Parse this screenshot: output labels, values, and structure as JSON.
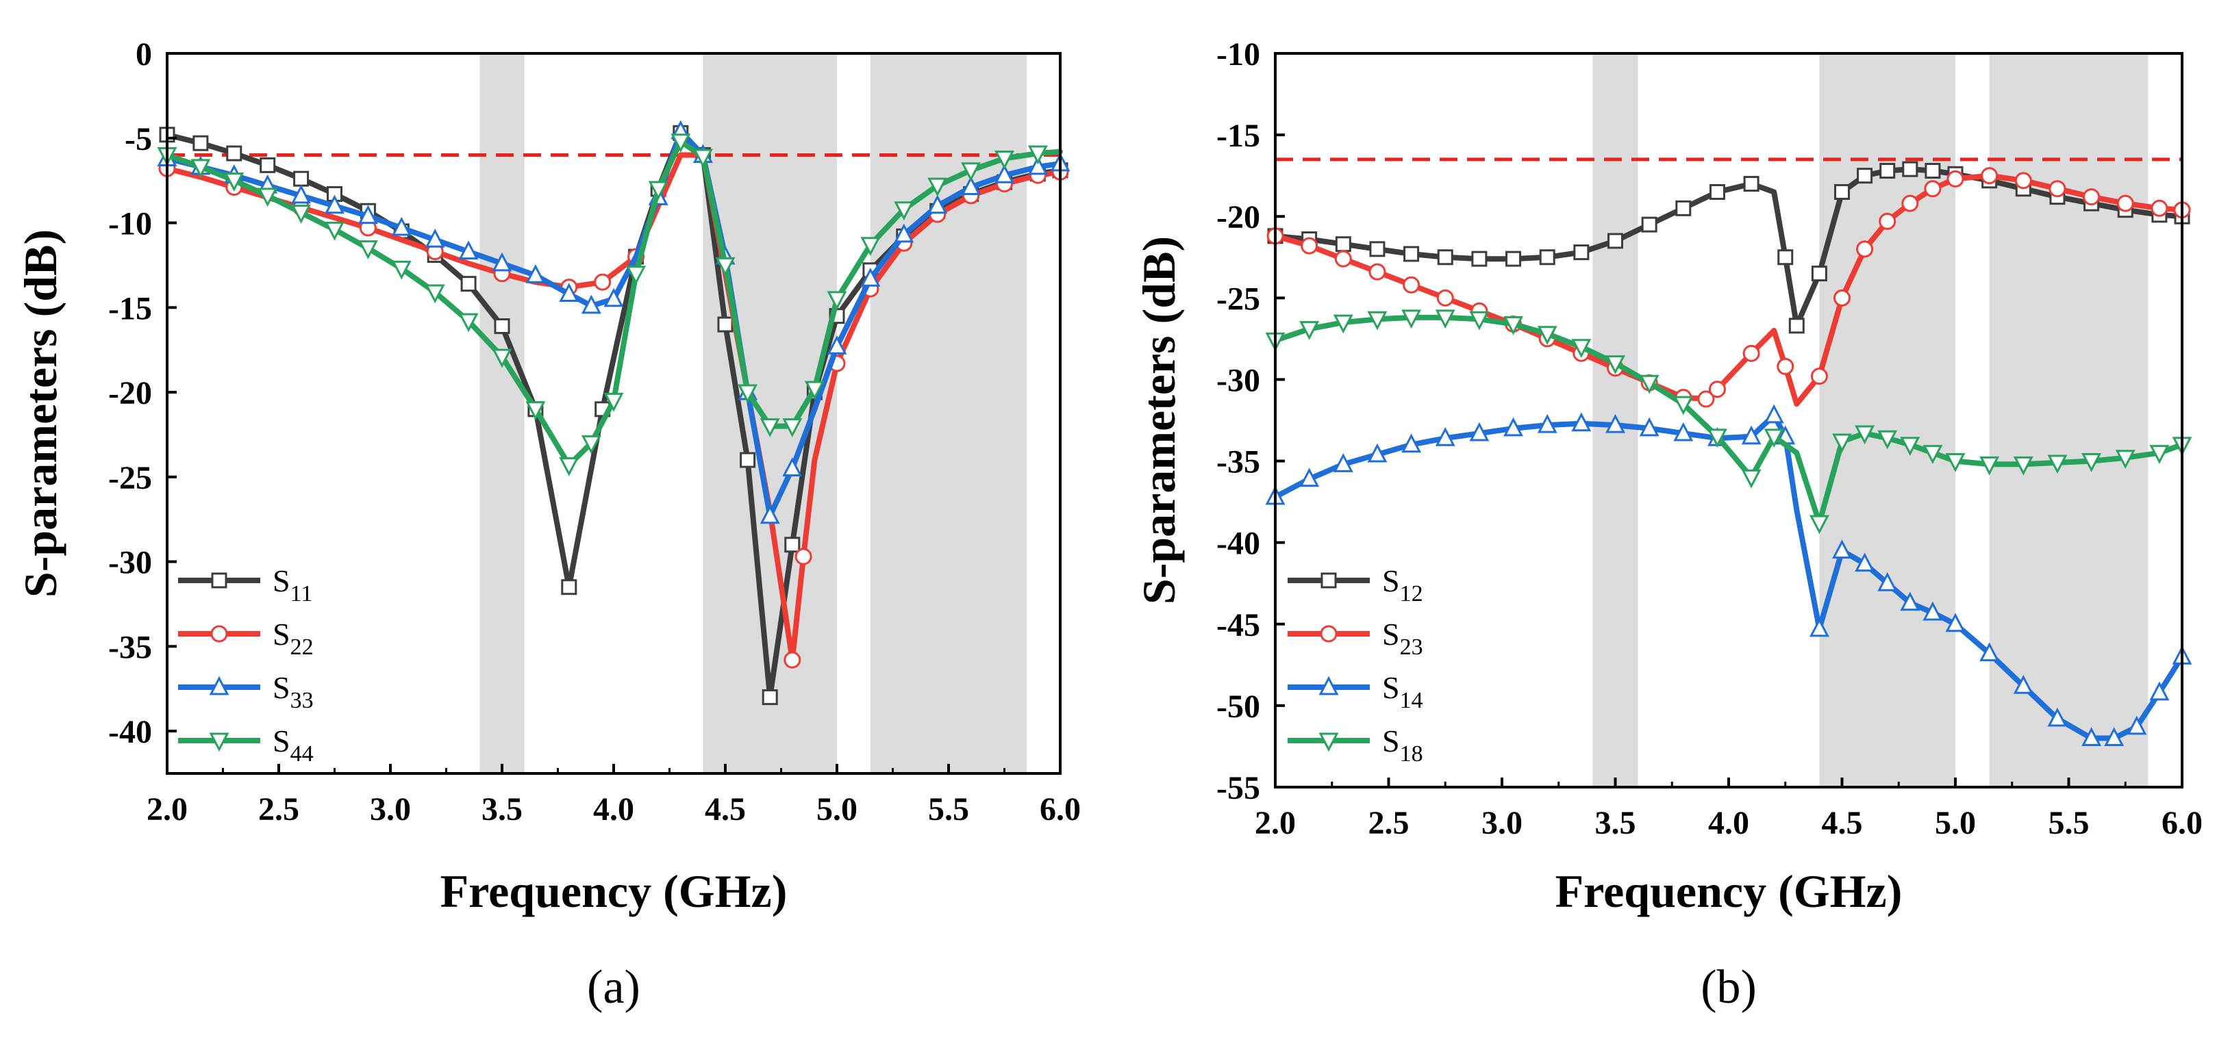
{
  "figure": {
    "colors": {
      "band": "#dcdcdc",
      "threshold": "#e8231e",
      "s_black": "#3d3d3d",
      "s_red": "#ee3b33",
      "s_blue": "#1f6fdb",
      "s_green": "#27a35b"
    }
  },
  "chart_data": [
    {
      "panel": "a",
      "panel_label": "(a)",
      "type": "line",
      "xlabel": "Frequency (GHz)",
      "ylabel": "S-parameters (dB)",
      "xlim": [
        2.0,
        6.0
      ],
      "ylim": [
        -42.5,
        0
      ],
      "xticks": [
        2.0,
        2.5,
        3.0,
        3.5,
        4.0,
        4.5,
        5.0,
        5.5,
        6.0
      ],
      "xtick_labels": [
        "2.0",
        "2.5",
        "3.0",
        "3.5",
        "4.0",
        "4.5",
        "5.0",
        "5.5",
        "6.0"
      ],
      "yticks": [
        0,
        -5,
        -10,
        -15,
        -20,
        -25,
        -30,
        -35,
        -40
      ],
      "ytick_labels": [
        "0",
        "-5",
        "-10",
        "-15",
        "-20",
        "-25",
        "-30",
        "-35",
        "-40"
      ],
      "threshold": -6,
      "bands": [
        [
          3.4,
          3.6
        ],
        [
          4.4,
          5.0
        ],
        [
          5.15,
          5.85
        ]
      ],
      "legend_position": "bottom-left",
      "series": [
        {
          "name": "S11",
          "label_main": "S",
          "label_sub": "11",
          "color": "#3d3d3d",
          "marker": "square",
          "x": [
            2.0,
            2.15,
            2.3,
            2.45,
            2.6,
            2.75,
            2.9,
            3.05,
            3.2,
            3.35,
            3.5,
            3.65,
            3.8,
            3.95,
            4.1,
            4.2,
            4.3,
            4.4,
            4.5,
            4.6,
            4.7,
            4.8,
            4.9,
            5.0,
            5.15,
            5.3,
            5.45,
            5.6,
            5.75,
            5.9,
            6.0
          ],
          "y": [
            -4.8,
            -5.3,
            -5.9,
            -6.6,
            -7.4,
            -8.3,
            -9.3,
            -10.5,
            -11.9,
            -13.6,
            -16.1,
            -21.0,
            -31.5,
            -21.0,
            -12.0,
            -8.0,
            -4.7,
            -6.0,
            -16.0,
            -24.0,
            -38.0,
            -29.0,
            -20.0,
            -15.5,
            -12.8,
            -10.8,
            -9.3,
            -8.3,
            -7.6,
            -7.1,
            -6.9
          ],
          "markers": [
            0,
            1,
            2,
            3,
            4,
            5,
            6,
            7,
            8,
            9,
            10,
            11,
            12,
            13,
            14,
            15,
            16,
            17,
            18,
            19,
            20,
            21,
            22,
            23,
            24,
            25,
            26,
            27,
            28,
            29,
            30
          ]
        },
        {
          "name": "S22",
          "label_main": "S",
          "label_sub": "22",
          "color": "#ee3b33",
          "marker": "circle",
          "x": [
            2.0,
            2.15,
            2.3,
            2.45,
            2.6,
            2.75,
            2.9,
            3.05,
            3.2,
            3.35,
            3.5,
            3.65,
            3.8,
            3.95,
            4.1,
            4.2,
            4.3,
            4.4,
            4.5,
            4.6,
            4.7,
            4.8,
            4.85,
            4.9,
            5.0,
            5.15,
            5.3,
            5.45,
            5.6,
            5.75,
            5.9,
            6.0
          ],
          "y": [
            -6.8,
            -7.3,
            -7.9,
            -8.5,
            -9.1,
            -9.7,
            -10.3,
            -11.0,
            -11.7,
            -12.4,
            -13.0,
            -13.5,
            -13.8,
            -13.5,
            -12.0,
            -9.0,
            -6.0,
            -6.0,
            -13.0,
            -20.0,
            -27.0,
            -35.8,
            -29.7,
            -24.0,
            -18.3,
            -13.9,
            -11.2,
            -9.5,
            -8.4,
            -7.7,
            -7.2,
            -7.0
          ],
          "markers": [
            0,
            2,
            4,
            6,
            8,
            10,
            12,
            13,
            14,
            21,
            22,
            24,
            25,
            26,
            27,
            28,
            29,
            30,
            31
          ]
        },
        {
          "name": "S33",
          "label_main": "S",
          "label_sub": "33",
          "color": "#1f6fdb",
          "marker": "triangle-up",
          "x": [
            2.0,
            2.15,
            2.3,
            2.45,
            2.6,
            2.75,
            2.9,
            3.05,
            3.2,
            3.35,
            3.5,
            3.65,
            3.8,
            3.9,
            4.0,
            4.1,
            4.2,
            4.3,
            4.4,
            4.5,
            4.6,
            4.7,
            4.8,
            4.9,
            5.0,
            5.15,
            5.3,
            5.45,
            5.6,
            5.75,
            5.9,
            6.0
          ],
          "y": [
            -6.2,
            -6.7,
            -7.2,
            -7.8,
            -8.4,
            -9.0,
            -9.6,
            -10.3,
            -11.0,
            -11.7,
            -12.4,
            -13.1,
            -14.2,
            -14.9,
            -14.5,
            -12.0,
            -8.5,
            -4.6,
            -6.0,
            -12.0,
            -20.0,
            -27.3,
            -24.5,
            -21.0,
            -17.3,
            -13.3,
            -10.7,
            -9.0,
            -7.9,
            -7.2,
            -6.7,
            -6.5
          ],
          "markers": [
            0,
            1,
            2,
            3,
            4,
            5,
            6,
            7,
            8,
            9,
            10,
            11,
            12,
            13,
            14,
            16,
            17,
            18,
            19,
            20,
            21,
            22,
            24,
            25,
            26,
            27,
            28,
            29,
            30,
            31
          ]
        },
        {
          "name": "S44",
          "label_main": "S",
          "label_sub": "44",
          "color": "#27a35b",
          "marker": "triangle-down",
          "x": [
            2.0,
            2.15,
            2.3,
            2.45,
            2.6,
            2.75,
            2.9,
            3.05,
            3.2,
            3.35,
            3.5,
            3.65,
            3.8,
            3.9,
            4.0,
            4.1,
            4.2,
            4.3,
            4.4,
            4.5,
            4.6,
            4.7,
            4.8,
            4.9,
            5.0,
            5.15,
            5.3,
            5.45,
            5.6,
            5.75,
            5.9,
            6.0
          ],
          "y": [
            -6.0,
            -6.7,
            -7.5,
            -8.4,
            -9.4,
            -10.4,
            -11.5,
            -12.7,
            -14.1,
            -15.8,
            -17.9,
            -21.0,
            -24.3,
            -23.0,
            -20.5,
            -13.0,
            -8.0,
            -5.2,
            -6.1,
            -12.5,
            -20.0,
            -22.0,
            -22.0,
            -19.8,
            -14.5,
            -11.3,
            -9.2,
            -7.8,
            -6.9,
            -6.2,
            -5.9,
            -5.8
          ],
          "markers": [
            0,
            1,
            2,
            3,
            4,
            5,
            6,
            7,
            8,
            9,
            10,
            11,
            12,
            13,
            14,
            15,
            16,
            17,
            18,
            19,
            20,
            21,
            22,
            23,
            24,
            25,
            26,
            27,
            28,
            29,
            30
          ]
        }
      ]
    },
    {
      "panel": "b",
      "panel_label": "(b)",
      "type": "line",
      "xlabel": "Frequency (GHz)",
      "ylabel": "S-parameters (dB)",
      "xlim": [
        2.0,
        6.0
      ],
      "ylim": [
        -55,
        -10
      ],
      "xticks": [
        2.0,
        2.5,
        3.0,
        3.5,
        4.0,
        4.5,
        5.0,
        5.5,
        6.0
      ],
      "xtick_labels": [
        "2.0",
        "2.5",
        "3.0",
        "3.5",
        "4.0",
        "4.5",
        "5.0",
        "5.5",
        "6.0"
      ],
      "yticks": [
        -10,
        -15,
        -20,
        -25,
        -30,
        -35,
        -40,
        -45,
        -50,
        -55
      ],
      "ytick_labels": [
        "-10",
        "-15",
        "-20",
        "-25",
        "-30",
        "-35",
        "-40",
        "-45",
        "-50",
        "-55"
      ],
      "threshold": -16.5,
      "bands": [
        [
          3.4,
          3.6
        ],
        [
          4.4,
          5.0
        ],
        [
          5.15,
          5.85
        ]
      ],
      "legend_position": "bottom-left",
      "series": [
        {
          "name": "S12",
          "label_main": "S",
          "label_sub": "12",
          "color": "#3d3d3d",
          "marker": "square",
          "x": [
            2.0,
            2.15,
            2.3,
            2.45,
            2.6,
            2.75,
            2.9,
            3.05,
            3.2,
            3.35,
            3.5,
            3.65,
            3.8,
            3.95,
            4.1,
            4.2,
            4.25,
            4.3,
            4.4,
            4.5,
            4.6,
            4.7,
            4.8,
            4.9,
            5.0,
            5.15,
            5.3,
            5.45,
            5.6,
            5.75,
            5.9,
            6.0
          ],
          "y": [
            -21.2,
            -21.4,
            -21.7,
            -22.0,
            -22.3,
            -22.5,
            -22.6,
            -22.6,
            -22.5,
            -22.2,
            -21.5,
            -20.5,
            -19.5,
            -18.5,
            -18.0,
            -18.5,
            -22.5,
            -26.7,
            -23.5,
            -18.5,
            -17.5,
            -17.2,
            -17.1,
            -17.2,
            -17.4,
            -17.8,
            -18.3,
            -18.8,
            -19.2,
            -19.6,
            -19.9,
            -20.0
          ],
          "markers": [
            0,
            1,
            2,
            3,
            4,
            5,
            6,
            7,
            8,
            9,
            10,
            11,
            12,
            13,
            14,
            16,
            17,
            18,
            19,
            20,
            21,
            22,
            23,
            24,
            25,
            26,
            27,
            28,
            29,
            30,
            31
          ]
        },
        {
          "name": "S23",
          "label_main": "S",
          "label_sub": "23",
          "color": "#ee3b33",
          "marker": "circle",
          "x": [
            2.0,
            2.15,
            2.3,
            2.45,
            2.6,
            2.75,
            2.9,
            3.05,
            3.2,
            3.35,
            3.5,
            3.65,
            3.8,
            3.9,
            3.95,
            4.1,
            4.2,
            4.25,
            4.3,
            4.4,
            4.5,
            4.6,
            4.7,
            4.8,
            4.9,
            5.0,
            5.15,
            5.3,
            5.45,
            5.6,
            5.75,
            5.9,
            6.0
          ],
          "y": [
            -21.2,
            -21.8,
            -22.6,
            -23.4,
            -24.2,
            -25.0,
            -25.8,
            -26.6,
            -27.5,
            -28.4,
            -29.3,
            -30.2,
            -31.1,
            -31.2,
            -30.6,
            -28.4,
            -27.0,
            -29.2,
            -31.5,
            -29.8,
            -25.0,
            -22.0,
            -20.3,
            -19.2,
            -18.3,
            -17.7,
            -17.5,
            -17.8,
            -18.3,
            -18.8,
            -19.2,
            -19.5,
            -19.6
          ],
          "markers": [
            0,
            1,
            2,
            3,
            4,
            5,
            6,
            7,
            8,
            9,
            10,
            11,
            12,
            13,
            14,
            15,
            17,
            19,
            20,
            21,
            22,
            23,
            24,
            25,
            26,
            27,
            28,
            29,
            30,
            31,
            32
          ]
        },
        {
          "name": "S14",
          "label_main": "S",
          "label_sub": "14",
          "color": "#1f6fdb",
          "marker": "triangle-up",
          "x": [
            2.0,
            2.15,
            2.3,
            2.45,
            2.6,
            2.75,
            2.9,
            3.05,
            3.2,
            3.35,
            3.5,
            3.65,
            3.8,
            3.95,
            4.1,
            4.2,
            4.25,
            4.3,
            4.4,
            4.5,
            4.6,
            4.7,
            4.8,
            4.9,
            5.0,
            5.15,
            5.3,
            5.45,
            5.6,
            5.7,
            5.8,
            5.9,
            6.0
          ],
          "y": [
            -37.2,
            -36.1,
            -35.2,
            -34.6,
            -34.0,
            -33.6,
            -33.3,
            -33.0,
            -32.8,
            -32.7,
            -32.8,
            -33.0,
            -33.3,
            -33.6,
            -33.5,
            -32.2,
            -33.5,
            -38.0,
            -45.3,
            -40.5,
            -41.3,
            -42.5,
            -43.7,
            -44.3,
            -45.0,
            -46.8,
            -48.8,
            -50.8,
            -52.0,
            -52.0,
            -51.3,
            -49.2,
            -47.0
          ],
          "markers": [
            0,
            1,
            2,
            3,
            4,
            5,
            6,
            7,
            8,
            9,
            10,
            11,
            12,
            13,
            14,
            15,
            16,
            18,
            19,
            20,
            21,
            22,
            23,
            24,
            25,
            26,
            27,
            28,
            29,
            30,
            31,
            32
          ]
        },
        {
          "name": "S18",
          "label_main": "S",
          "label_sub": "18",
          "color": "#27a35b",
          "marker": "triangle-down",
          "x": [
            2.0,
            2.15,
            2.3,
            2.45,
            2.6,
            2.75,
            2.9,
            3.05,
            3.2,
            3.35,
            3.5,
            3.65,
            3.8,
            3.95,
            4.1,
            4.2,
            4.3,
            4.4,
            4.5,
            4.6,
            4.7,
            4.8,
            4.9,
            5.0,
            5.15,
            5.3,
            5.45,
            5.6,
            5.75,
            5.9,
            6.0
          ],
          "y": [
            -27.6,
            -26.9,
            -26.5,
            -26.3,
            -26.2,
            -26.2,
            -26.3,
            -26.6,
            -27.2,
            -28.0,
            -29.0,
            -30.2,
            -31.5,
            -33.5,
            -36.0,
            -33.5,
            -34.5,
            -38.8,
            -33.8,
            -33.3,
            -33.6,
            -34.0,
            -34.5,
            -35.0,
            -35.2,
            -35.2,
            -35.1,
            -35.0,
            -34.8,
            -34.5,
            -34.0
          ],
          "markers": [
            0,
            1,
            2,
            3,
            4,
            5,
            6,
            7,
            8,
            9,
            10,
            11,
            12,
            13,
            14,
            15,
            17,
            18,
            19,
            20,
            21,
            22,
            23,
            24,
            25,
            26,
            27,
            28,
            29,
            30
          ]
        }
      ]
    }
  ]
}
